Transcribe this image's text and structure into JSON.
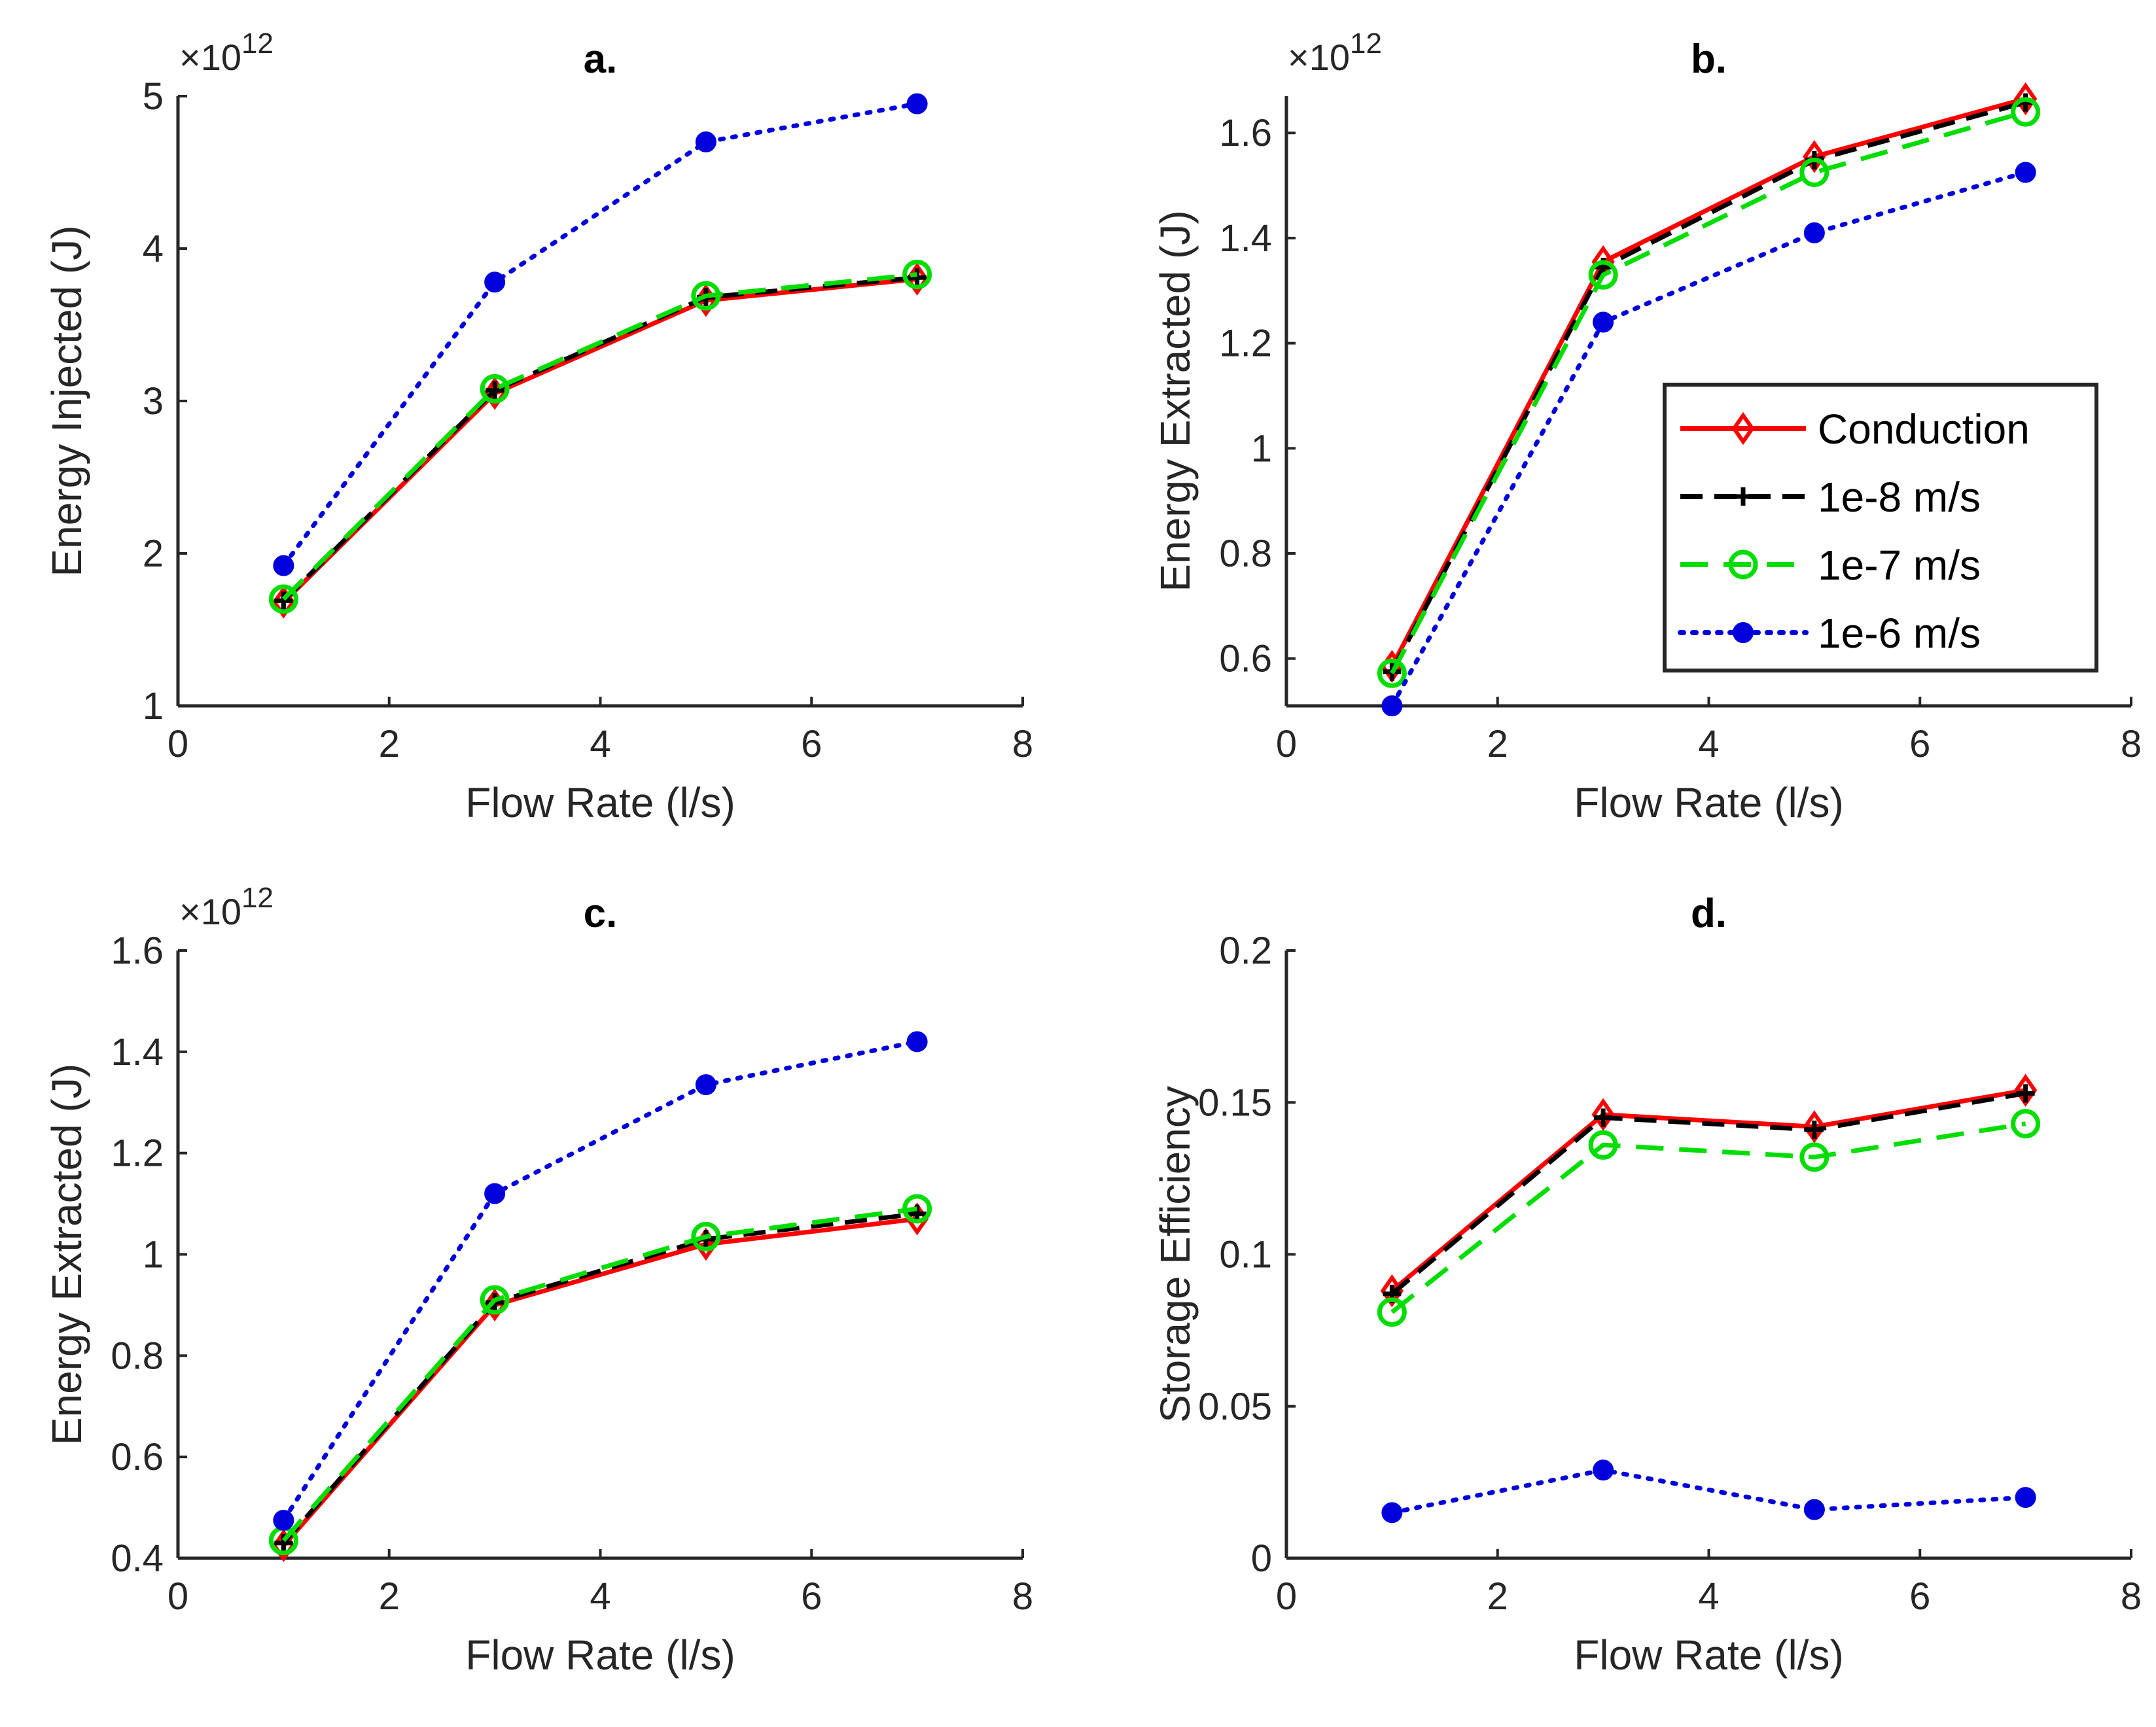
{
  "figure": {
    "series_styles": {
      "Conduction": {
        "color": "#ff0000",
        "dash": "",
        "marker": "diamond"
      },
      "1e-8 m/s": {
        "color": "#000000",
        "dash": "dashed",
        "marker": "plus"
      },
      "1e-7 m/s": {
        "color": "#00dd00",
        "dash": "dashed-long",
        "marker": "circle-open"
      },
      "1e-6 m/s": {
        "color": "#0000dd",
        "dash": "dotted",
        "marker": "dot"
      }
    },
    "legend": {
      "location": "right-middle of panel b",
      "entries": [
        "Conduction",
        "1e-8 m/s",
        "1e-7 m/s",
        "1e-6 m/s"
      ]
    }
  },
  "chart_data": [
    {
      "panel": "a",
      "type": "line",
      "title": "a.",
      "xlabel": "Flow Rate (l/s)",
      "ylabel": "Energy Injected (J)",
      "exponent_label": "×10",
      "exponent_power": "12",
      "xlim": [
        0,
        8
      ],
      "ylim": [
        1,
        5
      ],
      "xticks": [
        0,
        2,
        4,
        6,
        8
      ],
      "yticks": [
        1,
        2,
        3,
        4,
        5
      ],
      "ytick_labels": [
        "1",
        "2",
        "3",
        "4",
        "5"
      ],
      "x": [
        1,
        3,
        5,
        7
      ],
      "series": [
        {
          "name": "Conduction",
          "values": [
            1.68,
            3.05,
            3.66,
            3.8
          ]
        },
        {
          "name": "1e-8 m/s",
          "values": [
            1.69,
            3.07,
            3.68,
            3.81
          ]
        },
        {
          "name": "1e-7 m/s",
          "values": [
            1.7,
            3.08,
            3.69,
            3.83
          ]
        },
        {
          "name": "1e-6 m/s",
          "values": [
            1.92,
            3.78,
            4.7,
            4.95
          ]
        }
      ]
    },
    {
      "panel": "b",
      "type": "line",
      "title": "b.",
      "xlabel": "Flow Rate (l/s)",
      "ylabel": "Energy Extracted (J)",
      "exponent_label": "×10",
      "exponent_power": "12",
      "xlim": [
        0,
        8
      ],
      "ylim": [
        0.51,
        1.67
      ],
      "xticks": [
        0,
        2,
        4,
        6,
        8
      ],
      "yticks": [
        0.6,
        0.8,
        1,
        1.2,
        1.4,
        1.6
      ],
      "ytick_labels": [
        "0.6",
        "0.8",
        "1",
        "1.2",
        "1.4",
        "1.6"
      ],
      "x": [
        1,
        3,
        5,
        7
      ],
      "series": [
        {
          "name": "Conduction",
          "values": [
            0.585,
            1.355,
            1.555,
            1.665
          ]
        },
        {
          "name": "1e-8 m/s",
          "values": [
            0.575,
            1.345,
            1.548,
            1.658
          ]
        },
        {
          "name": "1e-7 m/s",
          "values": [
            0.572,
            1.33,
            1.525,
            1.64
          ]
        },
        {
          "name": "1e-6 m/s",
          "values": [
            0.51,
            1.24,
            1.41,
            1.525
          ]
        }
      ]
    },
    {
      "panel": "c",
      "type": "line",
      "title": "c.",
      "xlabel": "Flow Rate (l/s)",
      "ylabel": "Energy Extracted (J)",
      "exponent_label": "×10",
      "exponent_power": "12",
      "xlim": [
        0,
        8
      ],
      "ylim": [
        0.4,
        1.6
      ],
      "xticks": [
        0,
        2,
        4,
        6,
        8
      ],
      "yticks": [
        0.4,
        0.6,
        0.8,
        1,
        1.2,
        1.4,
        1.6
      ],
      "ytick_labels": [
        "0.4",
        "0.6",
        "0.8",
        "1",
        "1.2",
        "1.4",
        "1.6"
      ],
      "x": [
        1,
        3,
        5,
        7
      ],
      "series": [
        {
          "name": "Conduction",
          "values": [
            0.425,
            0.9,
            1.02,
            1.07
          ]
        },
        {
          "name": "1e-8 m/s",
          "values": [
            0.43,
            0.905,
            1.03,
            1.08
          ]
        },
        {
          "name": "1e-7 m/s",
          "values": [
            0.435,
            0.91,
            1.035,
            1.09
          ]
        },
        {
          "name": "1e-6 m/s",
          "values": [
            0.475,
            1.12,
            1.335,
            1.42
          ]
        }
      ]
    },
    {
      "panel": "d",
      "type": "line",
      "title": "d.",
      "xlabel": "Flow Rate (l/s)",
      "ylabel": "Storage Efficiency",
      "xlim": [
        0,
        8
      ],
      "ylim": [
        0,
        0.2
      ],
      "xticks": [
        0,
        2,
        4,
        6,
        8
      ],
      "yticks": [
        0,
        0.05,
        0.1,
        0.15,
        0.2
      ],
      "ytick_labels": [
        "0",
        "0.05",
        "0.1",
        "0.15",
        "0.2"
      ],
      "x": [
        1,
        3,
        5,
        7
      ],
      "series": [
        {
          "name": "Conduction",
          "values": [
            0.088,
            0.146,
            0.142,
            0.154
          ]
        },
        {
          "name": "1e-8 m/s",
          "values": [
            0.087,
            0.145,
            0.141,
            0.153
          ]
        },
        {
          "name": "1e-7 m/s",
          "values": [
            0.081,
            0.136,
            0.132,
            0.143
          ]
        },
        {
          "name": "1e-6 m/s",
          "values": [
            0.015,
            0.029,
            0.016,
            0.02
          ]
        }
      ]
    }
  ]
}
